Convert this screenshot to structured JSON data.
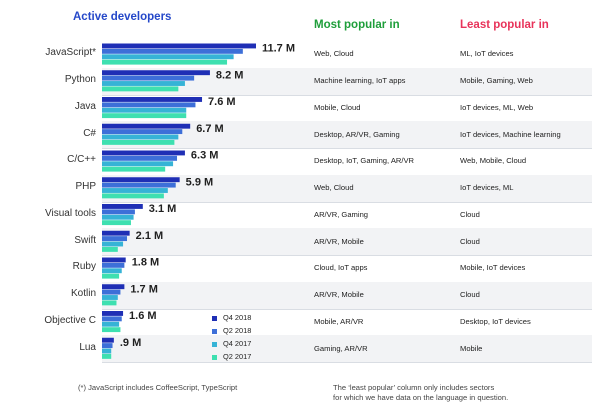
{
  "header": {
    "active_developers": "Active developers",
    "most_popular": "Most popular in",
    "least_popular": "Least popular in"
  },
  "colors": {
    "title": "#2548c9",
    "most_popular": "#1e9e3a",
    "least_popular": "#e8335a"
  },
  "legend": [
    {
      "label": "Q4 2018",
      "color": "#1f2fb5"
    },
    {
      "label": "Q2 2018",
      "color": "#3d6fd8"
    },
    {
      "label": "Q4 2017",
      "color": "#36b3d6"
    },
    {
      "label": "Q2 2017",
      "color": "#3ee0b0"
    }
  ],
  "rows": [
    {
      "language": "JavaScript*",
      "value_label": "11.7 M",
      "most": "Web, Cloud",
      "least": "ML, IoT devices"
    },
    {
      "language": "Python",
      "value_label": "8.2 M",
      "most": "Machine learning, IoT apps",
      "least": "Mobile, Gaming, Web"
    },
    {
      "language": "Java",
      "value_label": "7.6 M",
      "most": "Mobile, Cloud",
      "least": "IoT devices, ML, Web"
    },
    {
      "language": "C#",
      "value_label": "6.7 M",
      "most": "Desktop, AR/VR, Gaming",
      "least": "IoT devices, Machine learning"
    },
    {
      "language": "C/C++",
      "value_label": "6.3 M",
      "most": "Desktop, IoT, Gaming, AR/VR",
      "least": "Web, Mobile, Cloud"
    },
    {
      "language": "PHP",
      "value_label": "5.9 M",
      "most": "Web, Cloud",
      "least": "IoT devices, ML"
    },
    {
      "language": "Visual tools",
      "value_label": "3.1 M",
      "most": "AR/VR, Gaming",
      "least": "Cloud"
    },
    {
      "language": "Swift",
      "value_label": "2.1 M",
      "most": "AR/VR, Mobile",
      "least": "Cloud"
    },
    {
      "language": "Ruby",
      "value_label": "1.8 M",
      "most": "Cloud, IoT apps",
      "least": "Mobile, IoT devices"
    },
    {
      "language": "Kotlin",
      "value_label": "1.7 M",
      "most": "AR/VR, Mobile",
      "least": "Cloud"
    },
    {
      "language": "Objective C",
      "value_label": "1.6 M",
      "most": "Mobile, AR/VR",
      "least": "Desktop, IoT devices"
    },
    {
      "language": "Lua",
      "value_label": ".9 M",
      "most": "Gaming, AR/VR",
      "least": "Mobile"
    }
  ],
  "chart_data": {
    "type": "bar",
    "orientation": "horizontal",
    "title": "Active developers",
    "categories": [
      "JavaScript*",
      "Python",
      "Java",
      "C#",
      "C/C++",
      "PHP",
      "Visual tools",
      "Swift",
      "Ruby",
      "Kotlin",
      "Objective C",
      "Lua"
    ],
    "units": "M",
    "series": [
      {
        "name": "Q4 2018",
        "values": [
          11.7,
          8.2,
          7.6,
          6.7,
          6.3,
          5.9,
          3.1,
          2.1,
          1.8,
          1.7,
          1.6,
          0.9
        ]
      },
      {
        "name": "Q2 2018",
        "values": [
          10.7,
          7.0,
          7.1,
          6.1,
          5.7,
          5.6,
          2.5,
          1.9,
          1.7,
          1.4,
          1.5,
          0.8
        ]
      },
      {
        "name": "Q4 2017",
        "values": [
          10.0,
          6.3,
          6.4,
          5.8,
          5.4,
          5.0,
          2.4,
          1.6,
          1.5,
          1.2,
          1.3,
          0.7
        ]
      },
      {
        "name": "Q2 2017",
        "values": [
          9.5,
          5.8,
          6.4,
          5.5,
          4.8,
          4.7,
          2.2,
          1.2,
          1.3,
          1.1,
          1.4,
          0.7
        ]
      }
    ],
    "legend_position": "bottom-right",
    "xlim": [
      0,
      11.7
    ]
  },
  "footnotes": {
    "left": "(*) JavaScript includes CoffeeScript, TypeScript",
    "right_line1": "The ‘least popular’ column only includes sectors",
    "right_line2": "for which we have data on the language in question."
  }
}
